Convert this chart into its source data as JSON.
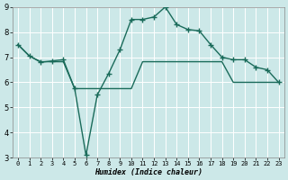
{
  "line1_x": [
    0,
    1,
    2,
    3,
    4,
    5,
    6,
    7,
    8,
    9,
    10,
    11,
    12,
    13,
    14,
    15,
    16,
    17,
    18,
    19,
    20,
    21,
    22,
    23
  ],
  "line1_y": [
    7.5,
    7.05,
    6.8,
    6.85,
    6.9,
    5.75,
    3.1,
    5.5,
    6.35,
    7.3,
    8.5,
    8.5,
    8.6,
    9.0,
    8.3,
    8.1,
    8.05,
    7.5,
    7.0,
    6.9,
    6.9,
    6.6,
    6.5,
    6.0
  ],
  "line2_x": [
    0,
    1,
    2,
    3,
    4,
    5,
    6,
    7,
    8,
    9,
    10,
    11,
    12,
    13,
    14,
    15,
    16,
    17,
    18,
    19,
    20,
    21,
    22,
    23
  ],
  "line2_y": [
    7.5,
    7.05,
    6.82,
    6.82,
    6.82,
    5.75,
    5.75,
    5.75,
    5.75,
    5.75,
    5.75,
    6.82,
    6.82,
    6.82,
    6.82,
    6.82,
    6.82,
    6.82,
    6.82,
    6.0,
    6.0,
    6.0,
    6.0,
    6.0
  ],
  "color": "#1a6b5a",
  "bg_color": "#cce8e8",
  "grid_color": "#b8d8d8",
  "xlabel": "Humidex (Indice chaleur)",
  "xlim": [
    -0.5,
    23.5
  ],
  "ylim": [
    3,
    9
  ],
  "yticks": [
    3,
    4,
    5,
    6,
    7,
    8,
    9
  ],
  "xticks": [
    0,
    1,
    2,
    3,
    4,
    5,
    6,
    7,
    8,
    9,
    10,
    11,
    12,
    13,
    14,
    15,
    16,
    17,
    18,
    19,
    20,
    21,
    22,
    23
  ],
  "title_fontsize": 7,
  "xlabel_fontsize": 6,
  "tick_fontsize": 5
}
